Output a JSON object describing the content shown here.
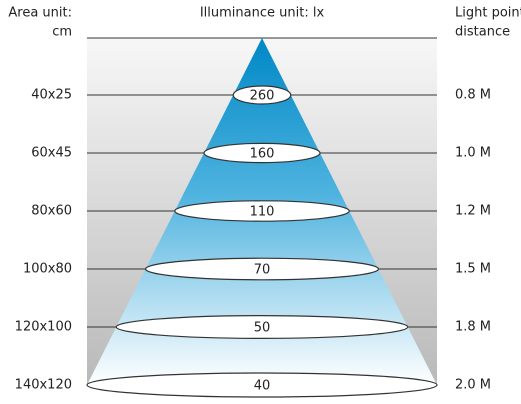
{
  "header": {
    "area_unit": [
      "Area unit:",
      "cm"
    ],
    "illuminance_unit": "Illuminance unit: lx",
    "distance_unit": [
      "Light point",
      "distance"
    ]
  },
  "rows": [
    {
      "area": "40x25",
      "lux": 260,
      "distance": "0.8 M"
    },
    {
      "area": "60x45",
      "lux": 160,
      "distance": "1.0 M"
    },
    {
      "area": "80x60",
      "lux": 110,
      "distance": "1.2 M"
    },
    {
      "area": "100x80",
      "lux": 70,
      "distance": "1.5 M"
    },
    {
      "area": "120x100",
      "lux": 50,
      "distance": "1.8 M"
    },
    {
      "area": "140x120",
      "lux": 40,
      "distance": "2.0 M"
    }
  ]
}
